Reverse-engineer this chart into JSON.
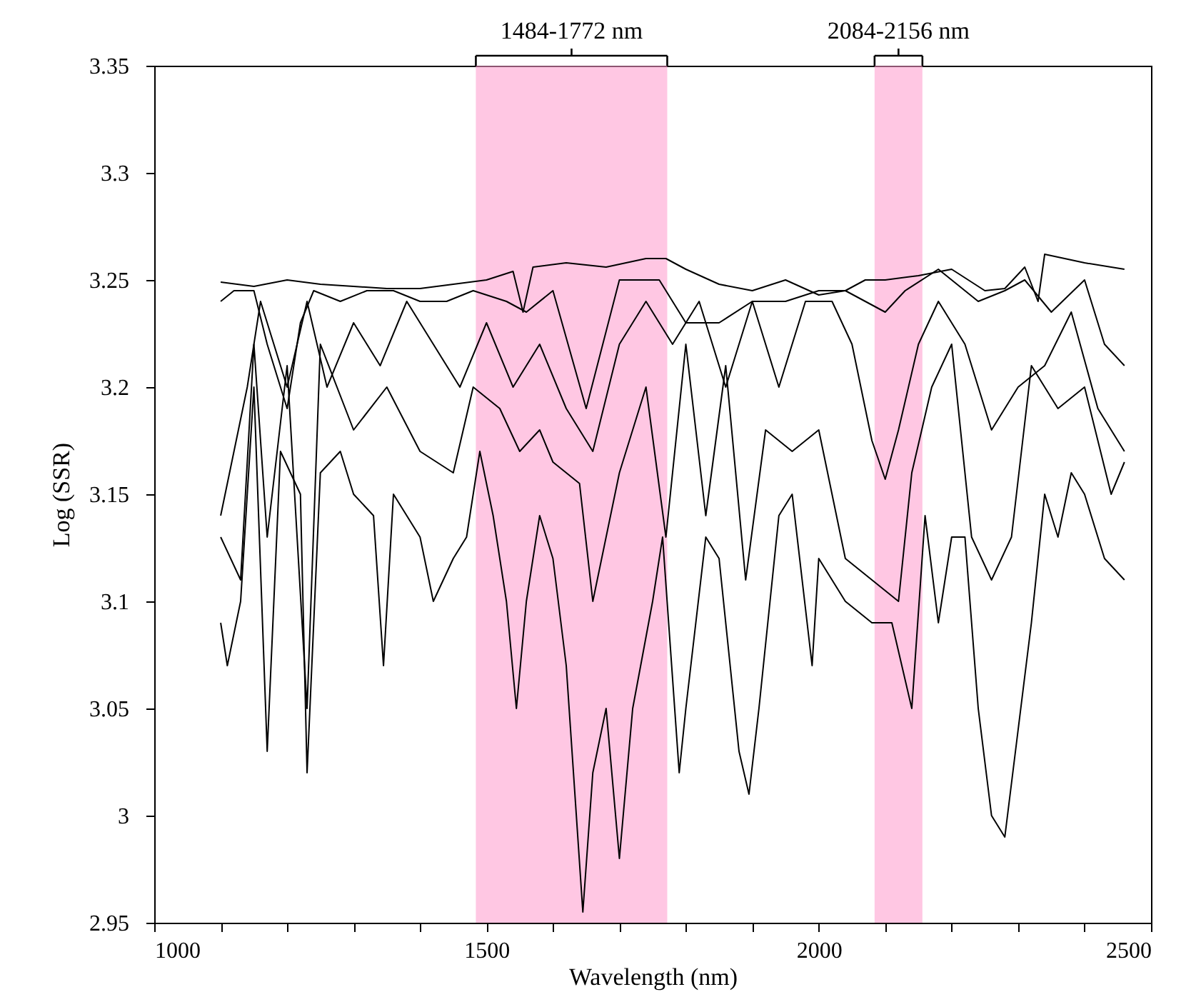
{
  "chart_data": {
    "type": "line",
    "xlabel": "Wavelength (nm)",
    "ylabel": "Log (SSR)",
    "xlim": [
      1000,
      2500
    ],
    "ylim": [
      2.95,
      3.35
    ],
    "xticks": [
      1000,
      {
        "value": 1100,
        "label": null
      },
      {
        "value": 1200,
        "label": null
      },
      {
        "value": 1300,
        "label": null
      },
      {
        "value": 1400,
        "label": null
      },
      1500,
      {
        "value": 1600,
        "label": null
      },
      {
        "value": 1700,
        "label": null
      },
      {
        "value": 1800,
        "label": null
      },
      {
        "value": 1900,
        "label": null
      },
      2000,
      {
        "value": 2100,
        "label": null
      },
      {
        "value": 2200,
        "label": null
      },
      {
        "value": 2300,
        "label": null
      },
      {
        "value": 2400,
        "label": null
      },
      2500
    ],
    "yticks": [
      2.95,
      3,
      3.05,
      3.1,
      3.15,
      3.2,
      3.25,
      3.3,
      3.35
    ],
    "grid": false,
    "line_style": "solid",
    "marker": "none",
    "bands": [
      {
        "axis": "x",
        "from": 1484,
        "to": 1772,
        "label": "1484-1772 nm",
        "color": "#ff99cc"
      },
      {
        "axis": "x",
        "from": 2084,
        "to": 2156,
        "label": "2084-2156 nm",
        "color": "#ff99cc"
      }
    ],
    "series": [
      {
        "color": "#000000",
        "x": [
          1100,
          1150,
          1200,
          1250,
          1300,
          1350,
          1400,
          1450,
          1500,
          1540,
          1555,
          1570,
          1620,
          1680,
          1740,
          1770,
          1800,
          1850,
          1900,
          1950,
          2000,
          2040,
          2070,
          2100,
          2150,
          2200,
          2250,
          2280,
          2310,
          2330,
          2340,
          2400,
          2460
        ],
        "values": [
          3.249,
          3.247,
          3.25,
          3.248,
          3.247,
          3.246,
          3.246,
          3.248,
          3.25,
          3.254,
          3.235,
          3.256,
          3.258,
          3.256,
          3.26,
          3.26,
          3.255,
          3.248,
          3.245,
          3.25,
          3.243,
          3.245,
          3.25,
          3.25,
          3.252,
          3.255,
          3.245,
          3.246,
          3.256,
          3.24,
          3.262,
          3.258,
          3.255
        ]
      },
      {
        "color": "#000000",
        "x": [
          1100,
          1120,
          1150,
          1170,
          1200,
          1220,
          1240,
          1280,
          1320,
          1360,
          1400,
          1440,
          1480,
          1530,
          1560,
          1600,
          1650,
          1700,
          1760,
          1800,
          1850,
          1900,
          1950,
          2000,
          2040,
          2070,
          2100,
          2130,
          2180,
          2240,
          2280,
          2310,
          2350,
          2400,
          2430,
          2460
        ],
        "values": [
          3.24,
          3.245,
          3.245,
          3.22,
          3.19,
          3.23,
          3.245,
          3.24,
          3.245,
          3.245,
          3.24,
          3.24,
          3.245,
          3.24,
          3.235,
          3.245,
          3.19,
          3.25,
          3.25,
          3.23,
          3.23,
          3.24,
          3.24,
          3.245,
          3.245,
          3.24,
          3.235,
          3.245,
          3.255,
          3.24,
          3.245,
          3.25,
          3.235,
          3.25,
          3.22,
          3.21
        ]
      },
      {
        "color": "#000000",
        "x": [
          1100,
          1140,
          1160,
          1200,
          1230,
          1260,
          1300,
          1340,
          1380,
          1420,
          1460,
          1500,
          1540,
          1580,
          1620,
          1660,
          1700,
          1740,
          1780,
          1820,
          1860,
          1900,
          1940,
          1980,
          2020,
          2050,
          2080,
          2100,
          2120,
          2150,
          2180,
          2220,
          2260,
          2300,
          2340,
          2380,
          2420,
          2460
        ],
        "values": [
          3.14,
          3.2,
          3.24,
          3.2,
          3.24,
          3.2,
          3.23,
          3.21,
          3.24,
          3.22,
          3.2,
          3.23,
          3.2,
          3.22,
          3.19,
          3.17,
          3.22,
          3.24,
          3.22,
          3.24,
          3.2,
          3.24,
          3.2,
          3.24,
          3.24,
          3.22,
          3.175,
          3.157,
          3.18,
          3.22,
          3.24,
          3.22,
          3.18,
          3.2,
          3.21,
          3.235,
          3.19,
          3.17
        ]
      },
      {
        "color": "#000000",
        "x": [
          1100,
          1130,
          1150,
          1170,
          1200,
          1230,
          1250,
          1300,
          1350,
          1400,
          1450,
          1480,
          1520,
          1550,
          1580,
          1600,
          1640,
          1660,
          1700,
          1740,
          1770,
          1800,
          1830,
          1860,
          1890,
          1920,
          1960,
          2000,
          2040,
          2080,
          2120,
          2140,
          2170,
          2200,
          2230,
          2260,
          2290,
          2320,
          2360,
          2400,
          2440,
          2460
        ],
        "values": [
          3.13,
          3.11,
          3.22,
          3.13,
          3.21,
          3.05,
          3.22,
          3.18,
          3.2,
          3.17,
          3.16,
          3.2,
          3.19,
          3.17,
          3.18,
          3.165,
          3.155,
          3.1,
          3.16,
          3.2,
          3.13,
          3.22,
          3.14,
          3.21,
          3.11,
          3.18,
          3.17,
          3.18,
          3.12,
          3.11,
          3.1,
          3.16,
          3.2,
          3.22,
          3.13,
          3.11,
          3.13,
          3.21,
          3.19,
          3.2,
          3.15,
          3.165
        ]
      },
      {
        "color": "#000000",
        "x": [
          1100,
          1110,
          1130,
          1150,
          1170,
          1190,
          1220,
          1230,
          1250,
          1280,
          1300,
          1330,
          1345,
          1360,
          1400,
          1420,
          1450,
          1470,
          1490,
          1510,
          1530,
          1545,
          1560,
          1580,
          1600,
          1620,
          1645,
          1660,
          1680,
          1700,
          1720,
          1750,
          1765,
          1790,
          1800,
          1830,
          1850,
          1880,
          1895,
          1910,
          1940,
          1960,
          1990,
          2000,
          2040,
          2080,
          2110,
          2140,
          2160,
          2180,
          2200,
          2220,
          2240,
          2260,
          2280,
          2300,
          2320,
          2340,
          2360,
          2380,
          2400,
          2430,
          2460
        ],
        "values": [
          3.09,
          3.07,
          3.1,
          3.2,
          3.03,
          3.17,
          3.15,
          3.02,
          3.16,
          3.17,
          3.15,
          3.14,
          3.07,
          3.15,
          3.13,
          3.1,
          3.12,
          3.13,
          3.17,
          3.14,
          3.1,
          3.05,
          3.1,
          3.14,
          3.12,
          3.07,
          2.955,
          3.02,
          3.05,
          2.98,
          3.05,
          3.1,
          3.13,
          3.02,
          3.05,
          3.13,
          3.12,
          3.03,
          3.01,
          3.05,
          3.14,
          3.15,
          3.07,
          3.12,
          3.1,
          3.09,
          3.09,
          3.05,
          3.14,
          3.09,
          3.13,
          3.13,
          3.05,
          3.0,
          2.99,
          3.04,
          3.09,
          3.15,
          3.13,
          3.16,
          3.15,
          3.12,
          3.11
        ]
      }
    ]
  }
}
